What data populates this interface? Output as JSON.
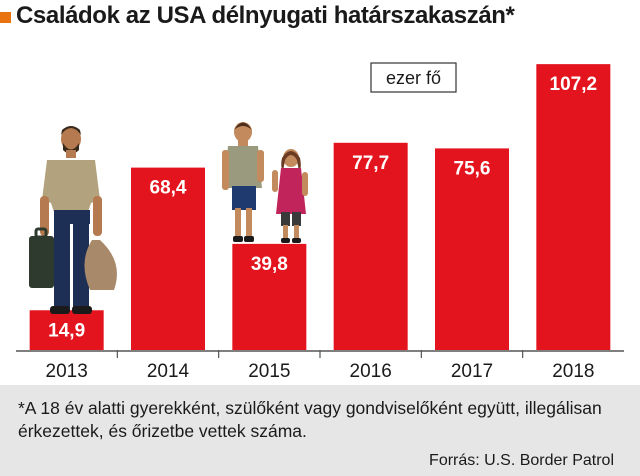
{
  "title": "Családok az USA délnyugati határszakaszán*",
  "chart_data": {
    "type": "bar",
    "title": "Családok az USA délnyugati határszakaszán*",
    "unit_label": "ezer fő",
    "categories": [
      "2013",
      "2014",
      "2015",
      "2016",
      "2017",
      "2018"
    ],
    "values": [
      14.9,
      68.4,
      39.8,
      77.7,
      75.6,
      107.2
    ],
    "value_labels": [
      "14,9",
      "68,4",
      "39,8",
      "77,7",
      "75,6",
      "107,2"
    ],
    "ylim": [
      0,
      108
    ],
    "grid": false,
    "bar_color": "#e3141d"
  },
  "footnote": "*A 18 év alatti gyerekként, szülőként vagy gondviselőként együtt, illegálisan érkezettek, és őrizetbe vettek száma.",
  "source": "Forrás: U.S. Border Patrol",
  "colors": {
    "accent": "#e8730f",
    "bar": "#e3141d",
    "footer_bg": "#e6e6e6"
  }
}
